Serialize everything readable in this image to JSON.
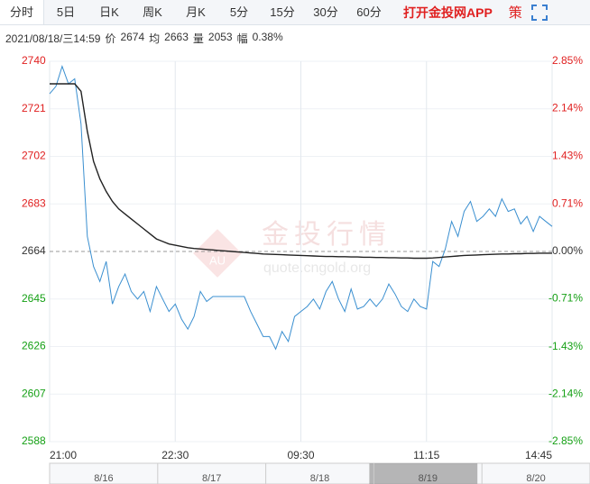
{
  "tabs": [
    "分时",
    "5日",
    "日K",
    "周K",
    "月K",
    "5分",
    "15分",
    "30分",
    "60分"
  ],
  "app_link": "打开金投网APP",
  "strategy_icon": "策",
  "info": {
    "datetime": "2021/08/18/三14:59",
    "price_label": "价",
    "price": "2674",
    "avg_label": "均",
    "avg": "2663",
    "vol_label": "量",
    "vol": "2053",
    "range_label": "幅",
    "range": "0.38%"
  },
  "watermark": {
    "title": "金投行情",
    "url": "quote.cngold.org",
    "badge": "AU"
  },
  "navigator": {
    "dates": [
      "8/16",
      "8/17",
      "8/18",
      "8/19",
      "8/20"
    ],
    "selected": 3
  },
  "chart_data": {
    "type": "line",
    "x": [
      0,
      1,
      2,
      3,
      4,
      5,
      6,
      7,
      8,
      9,
      10,
      11,
      12,
      13,
      14,
      15,
      16,
      17,
      18,
      19,
      20,
      21,
      22,
      23,
      24,
      25,
      26,
      27,
      28,
      29,
      30,
      31,
      32,
      33,
      34,
      35,
      36,
      37,
      38,
      39,
      40,
      41,
      42,
      43,
      44,
      45,
      46,
      47,
      48,
      49,
      50,
      51,
      52,
      53,
      54,
      55,
      56,
      57,
      58,
      59,
      60,
      61,
      62,
      63,
      64,
      65,
      66,
      67,
      68,
      69,
      70,
      71,
      72,
      73,
      74,
      75,
      76,
      77,
      78,
      79,
      80
    ],
    "series": [
      {
        "color": "#3a8fd0",
        "values": [
          2727,
          2730,
          2738,
          2731,
          2733,
          2715,
          2670,
          2658,
          2652,
          2660,
          2643,
          2650,
          2655,
          2648,
          2645,
          2648,
          2640,
          2650,
          2645,
          2640,
          2643,
          2637,
          2633,
          2638,
          2648,
          2644,
          2646,
          2646,
          2646,
          2646,
          2646,
          2646,
          2640,
          2635,
          2630,
          2630,
          2625,
          2632,
          2628,
          2638,
          2640,
          2642,
          2645,
          2641,
          2648,
          2652,
          2645,
          2640,
          2649,
          2641,
          2642,
          2645,
          2642,
          2645,
          2651,
          2647,
          2642,
          2640,
          2645,
          2642,
          2641,
          2660,
          2658,
          2665,
          2676,
          2670,
          2680,
          2684,
          2676,
          2678,
          2681,
          2678,
          2685,
          2680,
          2681,
          2675,
          2678,
          2672,
          2678,
          2676,
          2674
        ]
      },
      {
        "color": "#222222",
        "values": [
          2731,
          2731,
          2731,
          2731,
          2731,
          2728,
          2712,
          2700,
          2693,
          2688,
          2684,
          2681,
          2679,
          2677,
          2675,
          2673,
          2671,
          2669,
          2668,
          2667,
          2666.5,
          2666,
          2665.5,
          2665.2,
          2665,
          2664.8,
          2664.6,
          2664.4,
          2664.2,
          2664,
          2663.8,
          2663.6,
          2663.4,
          2663.2,
          2663,
          2662.9,
          2662.8,
          2662.7,
          2662.6,
          2662.5,
          2662.4,
          2662.3,
          2662.2,
          2662.1,
          2662,
          2662,
          2661.9,
          2661.9,
          2661.8,
          2661.8,
          2661.7,
          2661.7,
          2661.6,
          2661.6,
          2661.5,
          2661.5,
          2661.4,
          2661.4,
          2661.3,
          2661.3,
          2661.3,
          2661.4,
          2661.6,
          2661.8,
          2662,
          2662.2,
          2662.4,
          2662.5,
          2662.6,
          2662.7,
          2662.8,
          2662.9,
          2663,
          2663,
          2663.1,
          2663.1,
          2663.2,
          2663.2,
          2663.3,
          2663.3,
          2663.3
        ]
      }
    ],
    "xlim": [
      0,
      80
    ],
    "xticks": [
      {
        "value": 0,
        "label": "21:00"
      },
      {
        "value": 20,
        "label": "22:30"
      },
      {
        "value": 40,
        "label": "09:30"
      },
      {
        "value": 60,
        "label": "11:15"
      },
      {
        "value": 80,
        "label": "14:45"
      }
    ],
    "ylim": [
      2588,
      2740
    ],
    "yticks": [
      2740,
      2721,
      2702,
      2683,
      2664,
      2645,
      2626,
      2607,
      2588
    ],
    "y2lim": [
      -2.85,
      2.85
    ],
    "y2ticks": [
      {
        "value": 2.85,
        "label": "2.85%"
      },
      {
        "value": 2.14,
        "label": "2.14%"
      },
      {
        "value": 1.43,
        "label": "1.43%"
      },
      {
        "value": 0.71,
        "label": "0.71%"
      },
      {
        "value": 0,
        "label": "0.00%"
      },
      {
        "value": -0.71,
        "label": "-0.71%"
      },
      {
        "value": -1.43,
        "label": "-1.43%"
      },
      {
        "value": -2.14,
        "label": "-2.14%"
      },
      {
        "value": -2.85,
        "label": "-2.85%"
      }
    ],
    "ref_line": 2664,
    "grid": true,
    "up_color": "#e02020",
    "down_color": "#15a015",
    "flat_color": "#333333"
  }
}
